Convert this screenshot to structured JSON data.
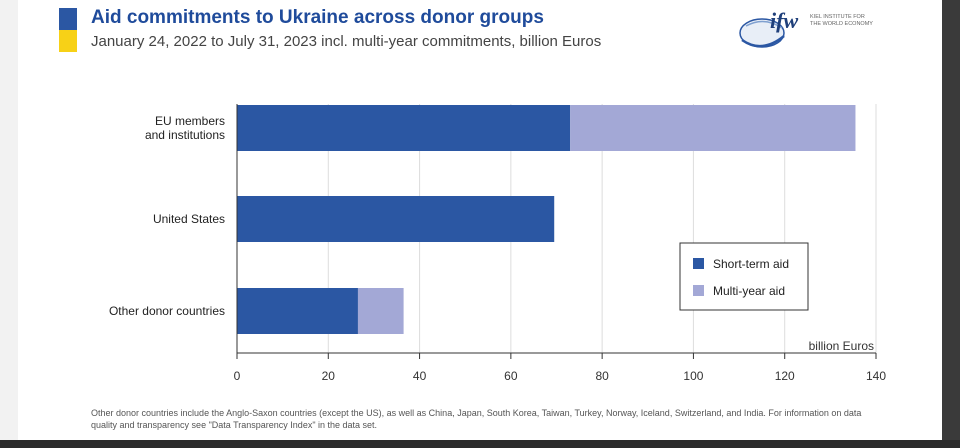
{
  "header": {
    "title": "Aid commitments to Ukraine across donor groups",
    "subtitle": "January 24, 2022 to July 31, 2023 incl. multi-year commitments, billion Euros"
  },
  "logo": {
    "mark": "ifw",
    "line1": "KIEL INSTITUTE FOR",
    "line2": "THE WORLD ECONOMY"
  },
  "footnote": {
    "text": "Other donor countries include the Anglo-Saxon countries (except the US), as well as China, Japan, South Korea, Taiwan, Turkey, Norway, Iceland, Switzerland, and India. For information on data quality and transparency see \"Data Transparency Index\" in the data set."
  },
  "colors": {
    "short_term": "#2b57a3",
    "multi_year": "#a3a8d6",
    "flag_blue": "#2b57a3",
    "flag_yellow": "#f7d117"
  },
  "chart_data": {
    "type": "bar",
    "orientation": "horizontal",
    "stacked": true,
    "categories": [
      [
        "EU members",
        "and institutions"
      ],
      [
        "United States"
      ],
      [
        "Other donor countries"
      ]
    ],
    "series": [
      {
        "name": "Short-term aid",
        "values": [
          73,
          69.5,
          26.5
        ]
      },
      {
        "name": "Multi-year aid",
        "values": [
          62.5,
          0,
          10
        ]
      }
    ],
    "xlabel": "billion Euros",
    "xlim": [
      0,
      140
    ],
    "xticks": [
      0,
      20,
      40,
      60,
      80,
      100,
      120,
      140
    ],
    "legend": "bottom-right",
    "grid": true
  }
}
